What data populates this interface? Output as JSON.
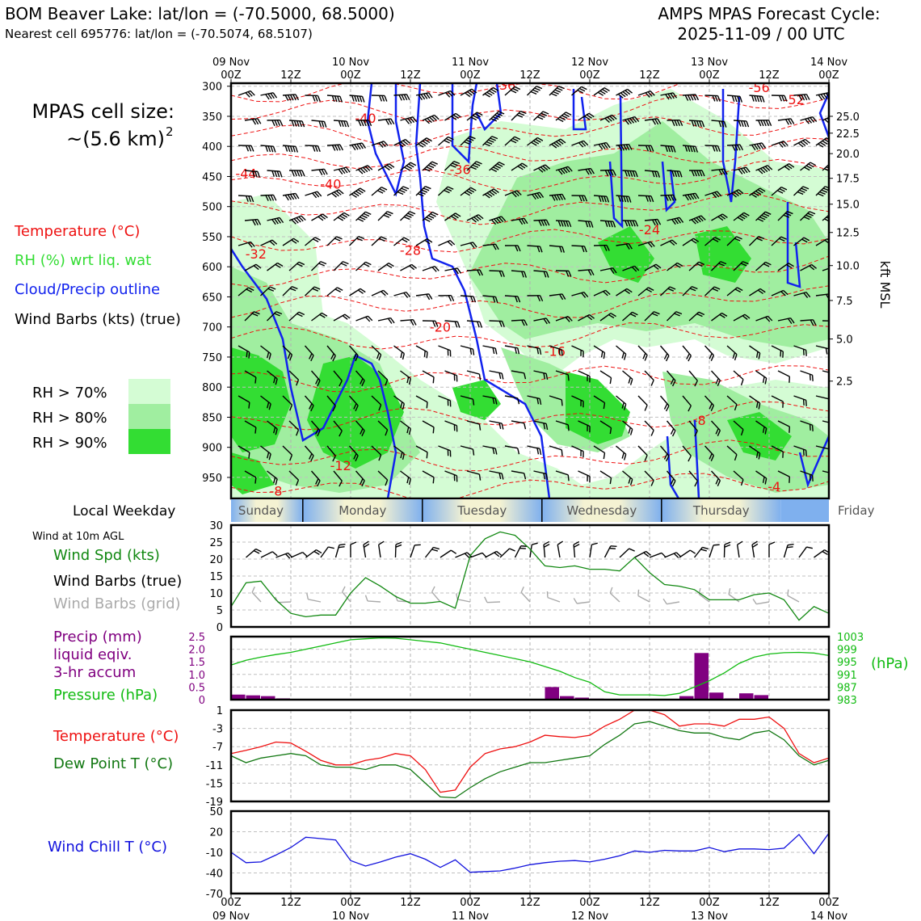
{
  "header": {
    "title_left": "BOM Beaver Lake: lat/lon = (-70.5000, 68.5000)",
    "subtitle_left": "Nearest cell 695776: lat/lon = (-70.5074, 68.5107)",
    "title_right_1": "AMPS MPAS Forecast Cycle:",
    "title_right_2": "2025-11-09 / 00 UTC"
  },
  "cell_size": {
    "line1": "MPAS cell size:",
    "line2": "~(5.6 km)",
    "sup": "2"
  },
  "legend": {
    "temperature": "Temperature (°C)",
    "rh": "RH (%) wrt liq. wat",
    "cloud": "Cloud/Precip outline",
    "barbs": "Wind Barbs (kts) (true)",
    "rh70": "RH > 70%",
    "rh80": "RH > 80%",
    "rh90": "RH > 90%"
  },
  "colors": {
    "rh70": "#d4fcd4",
    "rh80": "#a0eea0",
    "rh90": "#33dd33",
    "temp": "#ee1111",
    "cloud": "#1122ee",
    "pressure": "#11bb11",
    "precip": "#800080",
    "wind_spd": "#118811",
    "dew": "#117711",
    "chill": "#1111dd"
  },
  "time_axis": {
    "top_day_labels": [
      "09 Nov\n00Z",
      "12Z",
      "10 Nov\n00Z",
      "12Z",
      "11 Nov\n00Z",
      "12Z",
      "12 Nov\n00Z",
      "12Z",
      "13 Nov\n00Z",
      "12Z",
      "14 Nov\n00Z"
    ],
    "bottom_hour_labels": [
      "00Z",
      "12Z",
      "00Z",
      "12Z",
      "00Z",
      "12Z",
      "00Z",
      "12Z",
      "00Z",
      "12Z",
      "00Z"
    ],
    "bottom_date_labels": [
      "09 Nov",
      "",
      "10 Nov",
      "",
      "11 Nov",
      "",
      "12 Nov",
      "",
      "13 Nov",
      "",
      "14 Nov"
    ]
  },
  "weekday": {
    "label": "Local Weekday",
    "days": [
      "Sunday",
      "Monday",
      "Tuesday",
      "Wednesday",
      "Thursday",
      "Friday"
    ]
  },
  "chart_data": [
    {
      "type": "heatmap",
      "name": "upper-air cross section",
      "ylabel_left": "",
      "ylabel_right": "kft MSL",
      "pressure_ticks_hpa": [
        300,
        350,
        400,
        450,
        500,
        550,
        600,
        650,
        700,
        750,
        800,
        850,
        900,
        950
      ],
      "height_ticks_kft": [
        "25.0",
        "22.5",
        "20.0",
        "17.5",
        "15.0",
        "12.5",
        "10.0",
        "7.5",
        "5.0",
        "2.5"
      ],
      "height_tick_pressure_hpa": [
        350,
        378,
        412,
        453,
        496,
        543,
        598,
        656,
        720,
        790
      ],
      "ylim_hpa": [
        295,
        985
      ],
      "temperature_contour_labels": [
        {
          "text": "-44",
          "hour": 3,
          "p": 445
        },
        {
          "text": "-40",
          "hour": 20,
          "p": 462
        },
        {
          "text": "-40",
          "hour": 27,
          "p": 353
        },
        {
          "text": "-36",
          "hour": 46,
          "p": 438
        },
        {
          "text": "-32",
          "hour": 5,
          "p": 578
        },
        {
          "text": "-28",
          "hour": 36,
          "p": 572
        },
        {
          "text": "-24",
          "hour": 84,
          "p": 538
        },
        {
          "text": "-20",
          "hour": 42,
          "p": 700
        },
        {
          "text": "-16",
          "hour": 65,
          "p": 740
        },
        {
          "text": "-12",
          "hour": 22,
          "p": 930
        },
        {
          "text": "-8",
          "hour": 9,
          "p": 972
        },
        {
          "text": "-8",
          "hour": 94,
          "p": 855
        },
        {
          "text": "-4",
          "hour": 109,
          "p": 965
        },
        {
          "text": "-52",
          "hour": 113,
          "p": 322
        },
        {
          "text": "-56",
          "hour": 106,
          "p": 302
        },
        {
          "text": "-36",
          "hour": 55,
          "p": 298
        }
      ]
    },
    {
      "type": "line",
      "name": "wind speed",
      "title": "Wind at 10m AGL",
      "label_speed": "Wind Spd (kts)",
      "label_barbs_true": "Wind Barbs (true)",
      "label_barbs_grid": "Wind Barbs (grid)",
      "ylim": [
        0,
        30
      ],
      "yticks": [
        0,
        5,
        10,
        15,
        20,
        25,
        30
      ],
      "x_hours": [
        0,
        3,
        6,
        9,
        12,
        15,
        18,
        21,
        24,
        27,
        30,
        33,
        36,
        39,
        42,
        45,
        48,
        51,
        54,
        57,
        60,
        63,
        66,
        69,
        72,
        75,
        78,
        81,
        84,
        87,
        90,
        93,
        96,
        99,
        102,
        105,
        108,
        111,
        114,
        117,
        120
      ],
      "values": [
        6,
        13,
        13.5,
        8,
        4,
        3,
        3.5,
        3.5,
        10,
        14.5,
        12,
        9,
        7,
        7,
        7.5,
        5.5,
        21,
        26,
        28,
        27,
        23,
        18,
        17.5,
        18,
        17,
        17,
        16.5,
        20.5,
        16,
        12.5,
        12,
        11,
        8,
        8,
        8,
        9.5,
        10,
        8,
        2,
        6,
        4
      ]
    },
    {
      "type": "bar",
      "name": "precipitation and pressure",
      "label_precip": "Precip (mm)\nliquid eqiv.\n3-hr accum",
      "label_pressure": "Pressure (hPa)",
      "pressure_unit": "(hPa)",
      "precip_ylim": [
        0,
        2.5
      ],
      "precip_yticks": [
        "0",
        "0.5",
        "1.0",
        "1.5",
        "2.0",
        "2.5"
      ],
      "pressure_ylim": [
        983,
        1003
      ],
      "pressure_yticks": [
        "983",
        "987",
        "991",
        "995",
        "999",
        "1003"
      ],
      "precip_x_hours": [
        0,
        3,
        6,
        9,
        12,
        63,
        66,
        69,
        72,
        75,
        90,
        93,
        96,
        99,
        102,
        105
      ],
      "precip_values": [
        0.2,
        0.17,
        0.14,
        0.05,
        0.02,
        0.5,
        0.14,
        0.08,
        0.04,
        0.03,
        0.14,
        1.85,
        0.28,
        0.05,
        0.25,
        0.18
      ],
      "pressure_x_hours": [
        0,
        3,
        6,
        9,
        12,
        15,
        18,
        21,
        24,
        27,
        30,
        33,
        36,
        39,
        42,
        45,
        48,
        51,
        54,
        57,
        60,
        63,
        66,
        69,
        72,
        75,
        78,
        81,
        84,
        87,
        90,
        93,
        96,
        99,
        102,
        105,
        108,
        111,
        114,
        117,
        120
      ],
      "pressure_values": [
        994,
        995.5,
        996.5,
        997.3,
        998,
        999,
        1000,
        1001,
        1002,
        1002.3,
        1002.6,
        1002.5,
        1002,
        1001.5,
        1001,
        1000,
        999,
        998,
        997,
        996,
        995,
        993.5,
        992,
        990,
        988.5,
        985.5,
        984.5,
        984.5,
        984.5,
        984.3,
        985,
        987,
        989,
        991.5,
        994.5,
        996.5,
        997.5,
        997.9,
        998,
        997.8,
        997
      ]
    },
    {
      "type": "line",
      "name": "temperature and dew point",
      "label_temp": "Temperature (°C)",
      "label_dew": "Dew Point T (°C)",
      "ylim": [
        -19,
        1
      ],
      "yticks": [
        "1",
        "-3",
        "-7",
        "-11",
        "-15",
        "-19"
      ],
      "x_hours": [
        0,
        3,
        6,
        9,
        12,
        15,
        18,
        21,
        24,
        27,
        30,
        33,
        36,
        39,
        42,
        45,
        48,
        51,
        54,
        57,
        60,
        63,
        66,
        69,
        72,
        75,
        78,
        81,
        84,
        87,
        90,
        93,
        96,
        99,
        102,
        105,
        108,
        111,
        114,
        117,
        120
      ],
      "temp_values": [
        -8.5,
        -7.8,
        -7,
        -6,
        -6.2,
        -8,
        -10,
        -11,
        -11,
        -10,
        -9.5,
        -8.5,
        -9,
        -12,
        -17,
        -16.5,
        -11.5,
        -8.5,
        -7.5,
        -7,
        -6,
        -4.5,
        -4.8,
        -5,
        -4.5,
        -2.5,
        -1,
        1,
        1,
        0,
        -2.5,
        -2,
        -2,
        -2.5,
        -1,
        -1,
        -0.5,
        -3,
        -8.5,
        -10.5,
        -9.5
      ],
      "dew_values": [
        -9,
        -10.5,
        -9.5,
        -9,
        -8.5,
        -9,
        -11,
        -11.5,
        -11.5,
        -12,
        -11,
        -11,
        -12,
        -15,
        -18,
        -18.2,
        -16,
        -14,
        -12.5,
        -11.5,
        -10.5,
        -10.5,
        -10,
        -9.5,
        -9,
        -6.5,
        -4.5,
        -2,
        -1.5,
        -2.5,
        -3.5,
        -4,
        -4,
        -5,
        -5.5,
        -4,
        -3.5,
        -5.5,
        -9,
        -11,
        -10
      ]
    },
    {
      "type": "line",
      "name": "wind chill",
      "label": "Wind Chill T (°C)",
      "ylim": [
        -70,
        50
      ],
      "yticks": [
        "50",
        "20",
        "-10",
        "-40",
        "-70"
      ],
      "x_hours": [
        0,
        3,
        6,
        9,
        12,
        15,
        18,
        21,
        24,
        27,
        30,
        33,
        36,
        39,
        42,
        45,
        48,
        51,
        54,
        57,
        60,
        63,
        66,
        69,
        72,
        75,
        78,
        81,
        84,
        87,
        90,
        93,
        96,
        99,
        102,
        105,
        108,
        111,
        114,
        117,
        120
      ],
      "values": [
        -10,
        -25,
        -24,
        -14,
        -3,
        12,
        10,
        8,
        -22,
        -30,
        -24,
        -17,
        -12,
        -20,
        -32,
        -21,
        -39,
        -38,
        -37,
        -33,
        -28,
        -25,
        -23,
        -22,
        -24,
        -20,
        -15,
        -8,
        -10,
        -7,
        -8,
        -8,
        -3,
        -9,
        -5,
        -5,
        -6,
        -4,
        16,
        -12,
        18
      ]
    }
  ]
}
